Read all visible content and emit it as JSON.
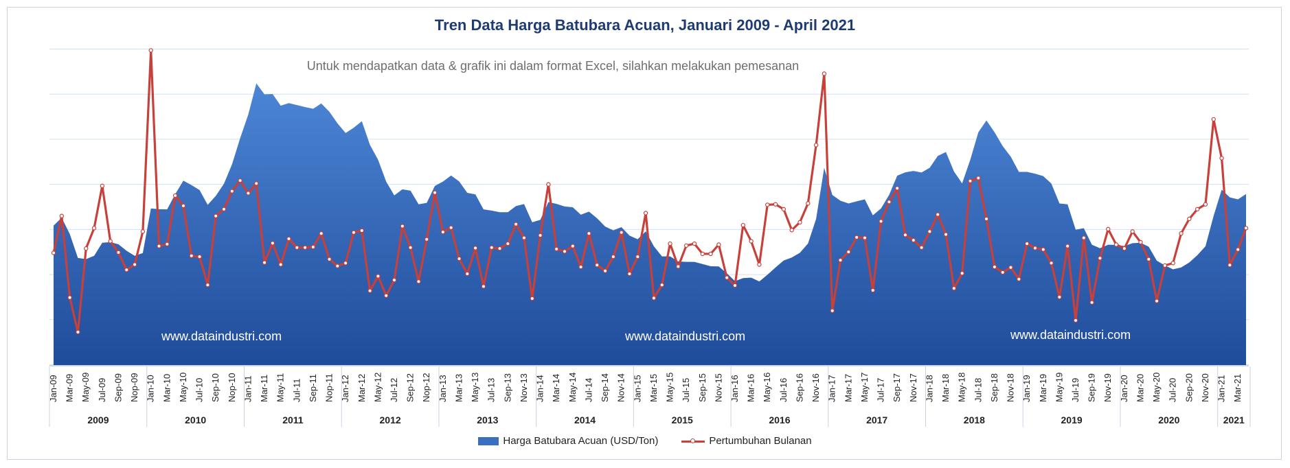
{
  "chart_data": {
    "type": "area",
    "title": "Tren Data Harga Batubara Acuan, Januari 2009 - April 2021",
    "subtitle": "Untuk mendapatkan data & grafik ini dalam format Excel, silahkan melakukan pemesanan",
    "watermarks": [
      "www.dataindustri.com",
      "www.dataindustri.com",
      "www.dataindustri.com"
    ],
    "x_tick_labels": [
      "Jan-09",
      "Mar-09",
      "May-09",
      "Jul-09",
      "Sep-09",
      "Nop-09",
      "Jan-10",
      "Mar-10",
      "May-10",
      "Jul-10",
      "Sep-10",
      "Nop-10",
      "Jan-11",
      "Mar-11",
      "May-11",
      "Jul-11",
      "Sep-11",
      "Nop-11",
      "Jan-12",
      "Mar-12",
      "May-12",
      "Jul-12",
      "Sep-12",
      "Nop-12",
      "Jan-13",
      "Mar-13",
      "May-13",
      "Jul-13",
      "Sep-13",
      "Nov-13",
      "Jan-14",
      "Mar-14",
      "May-14",
      "Jul-14",
      "Sep-14",
      "Nov-14",
      "Jan-15",
      "Mar-15",
      "May-15",
      "Jul-15",
      "Sep-15",
      "Nov-15",
      "Jan-16",
      "Mar-16",
      "May-16",
      "Jul-16",
      "Sep-16",
      "Nov-16",
      "Jan-17",
      "Mar-17",
      "May-17",
      "Jul-17",
      "Sep-17",
      "Nov-17",
      "Jan-18",
      "Mar-18",
      "May-18",
      "Jul-18",
      "Sep-18",
      "Nov-18",
      "Jan-19",
      "Mar-19",
      "May-19",
      "Jul-19",
      "Sep-19",
      "Nov-19",
      "Jan-20",
      "Mar-20",
      "May-20",
      "Jul-20",
      "Sep-20",
      "Nov-20",
      "Jan-21",
      "Mar-21"
    ],
    "years": [
      "2009",
      "2010",
      "2011",
      "2012",
      "2013",
      "2014",
      "2015",
      "2016",
      "2017",
      "2018",
      "2019",
      "2020",
      "2021"
    ],
    "months_per_year": [
      12,
      12,
      12,
      12,
      12,
      12,
      12,
      12,
      12,
      12,
      12,
      12,
      4
    ],
    "grid": true,
    "y_axis_labels_shown": false,
    "legend_position": "bottom",
    "series": [
      {
        "name": "Harga Batubara Acuan (USD/Ton)",
        "type": "area",
        "color": "#3a6fc0",
        "values": [
          70.7,
          74.7,
          66.4,
          54.3,
          53.7,
          55.4,
          62.0,
          62.3,
          61.2,
          57.9,
          55.4,
          56.8,
          79.4,
          79.0,
          78.9,
          86.7,
          93.5,
          91.2,
          88.7,
          81.2,
          85.8,
          91.9,
          101.8,
          115.0,
          127.0,
          142.8,
          137.2,
          137.4,
          131.5,
          132.8,
          131.8,
          130.8,
          129.9,
          132.6,
          128.4,
          122.5,
          117.6,
          120.3,
          123.6,
          111.6,
          104.1,
          93.0,
          86.0,
          89.1,
          88.4,
          81.5,
          82.2,
          90.8,
          93.0,
          96.1,
          93.1,
          87.3,
          86.5,
          78.9,
          78.3,
          77.5,
          77.5,
          80.6,
          81.6,
          72.4,
          73.6,
          82.6,
          81.7,
          80.4,
          80.0,
          76.2,
          77.8,
          74.4,
          70.2,
          68.3,
          69.9,
          65.6,
          63.8,
          67.8,
          60.2,
          55.1,
          55.1,
          52.5,
          52.3,
          52.3,
          51.2,
          50.1,
          50.0,
          46.5,
          42.5,
          44.1,
          44.3,
          42.4,
          45.8,
          49.5,
          53.0,
          54.5,
          56.9,
          61.6,
          74.1,
          100.0,
          86.2,
          83.3,
          81.9,
          83.0,
          84.0,
          75.9,
          79.4,
          86.2,
          96.0,
          97.7,
          98.4,
          97.6,
          100.0,
          106.0,
          108.0,
          98.1,
          92.1,
          104.0,
          118.0,
          124.0,
          118.0,
          111.0,
          105.6,
          97.9,
          97.9,
          97.0,
          95.8,
          92.0,
          81.9,
          81.5,
          68.6,
          69.4,
          61.0,
          59.2,
          61.0,
          60.9,
          60.3,
          61.8,
          62.0,
          60.0,
          52.9,
          50.5,
          48.5,
          49.5,
          52.0,
          55.7,
          60.2,
          75.6,
          88.9,
          85.0,
          84.0,
          86.7
        ]
      },
      {
        "name": "Pertumbuhan Bulanan",
        "type": "line",
        "color": "#c8403a",
        "values": [
          -1.9,
          5.7,
          -11.1,
          -18.2,
          -1.0,
          3.2,
          11.9,
          0.5,
          -1.8,
          -5.4,
          -4.3,
          2.5,
          39.8,
          -0.5,
          -0.1,
          9.9,
          7.8,
          -2.5,
          -2.7,
          -8.5,
          5.7,
          7.1,
          10.8,
          13.0,
          10.4,
          12.4,
          -3.9,
          0.1,
          -4.3,
          1.0,
          -0.8,
          -0.8,
          -0.7,
          2.1,
          -3.2,
          -4.6,
          -4.0,
          2.3,
          2.7,
          -9.7,
          -6.7,
          -10.7,
          -7.5,
          3.6,
          -0.8,
          -7.8,
          0.9,
          10.5,
          2.4,
          3.3,
          -3.1,
          -6.2,
          -0.9,
          -8.8,
          -0.8,
          -1.0,
          0.0,
          4.0,
          1.2,
          -11.3,
          1.7,
          12.2,
          -1.1,
          -1.6,
          -0.5,
          -4.8,
          2.1,
          -4.4,
          -5.6,
          -2.7,
          2.3,
          -6.2,
          -2.7,
          6.3,
          -11.2,
          -8.5,
          0.0,
          -4.7,
          -0.4,
          0.0,
          -2.1,
          -2.1,
          -0.2,
          -7.0,
          -8.6,
          3.8,
          0.5,
          -4.3,
          8.0,
          8.1,
          7.1,
          2.8,
          4.4,
          8.3,
          20.3,
          35.0,
          -13.8,
          -3.4,
          -1.7,
          1.3,
          1.2,
          -9.6,
          4.6,
          8.6,
          11.4,
          1.8,
          0.7,
          -0.8,
          2.5,
          6.0,
          1.9,
          -9.2,
          -6.1,
          12.9,
          13.5,
          5.1,
          -4.8,
          -5.9,
          -4.9,
          -7.3,
          0.0,
          -0.9,
          -1.2,
          -4.0,
          -11.0,
          -0.5,
          -15.8,
          1.2,
          -12.1,
          -3.0,
          3.0,
          -0.2,
          -1.0,
          2.5,
          0.3,
          -3.2,
          -11.8,
          -4.5,
          -4.0,
          2.1,
          5.1,
          7.1,
          8.1,
          25.6,
          17.6,
          -4.4,
          -1.2,
          3.2
        ]
      }
    ]
  }
}
